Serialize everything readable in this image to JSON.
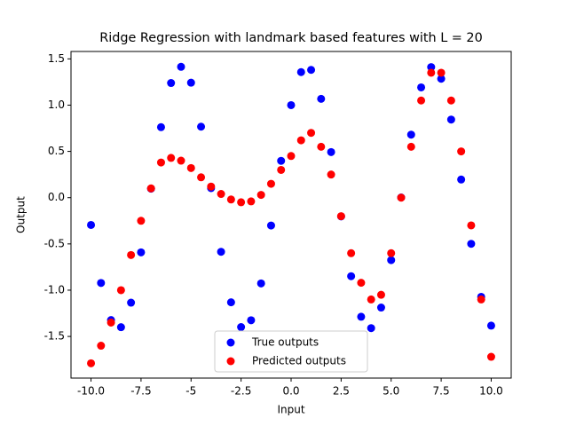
{
  "chart_data": {
    "type": "scatter",
    "title": "Ridge Regression with landmark based features with L = 20",
    "x_label": "Input",
    "y_label": "Output",
    "x": [
      -10,
      -9.5,
      -9,
      -8.5,
      -8,
      -7.5,
      -7,
      -6.5,
      -6,
      -5.5,
      -5,
      -4.5,
      -4,
      -3.5,
      -3,
      -2.5,
      -2,
      -1.5,
      -1,
      -0.5,
      0,
      0.5,
      1,
      1.5,
      2,
      2.5,
      3,
      3.5,
      4,
      4.5,
      5,
      5.5,
      6,
      6.5,
      7,
      7.5,
      8,
      8.5,
      9,
      9.5,
      10
    ],
    "series": [
      {
        "name": "True outputs",
        "color": "#0000ff",
        "values": [
          -0.295,
          -0.922,
          -1.323,
          -1.4,
          -1.135,
          -0.591,
          0.097,
          0.762,
          1.239,
          1.414,
          1.243,
          0.767,
          0.103,
          -0.585,
          -1.131,
          -1.399,
          -1.325,
          -0.927,
          -0.301,
          0.398,
          1,
          1.357,
          1.381,
          1.068,
          0.493,
          -0.203,
          -0.849,
          -1.287,
          -1.41,
          -1.188,
          -0.675,
          0.002,
          0.681,
          1.192,
          1.411,
          1.285,
          0.844,
          0.196,
          -0.499,
          -1.072,
          -1.383
        ]
      },
      {
        "name": "Predicted outputs",
        "color": "#ff0000",
        "values": [
          -1.79,
          -1.6,
          -1.35,
          -1.0,
          -0.62,
          -0.25,
          0.1,
          0.38,
          0.43,
          0.4,
          0.32,
          0.22,
          0.12,
          0.04,
          -0.02,
          -0.05,
          -0.04,
          0.03,
          0.15,
          0.3,
          0.45,
          0.62,
          0.7,
          0.55,
          0.25,
          -0.2,
          -0.6,
          -0.92,
          -1.1,
          -1.05,
          -0.6,
          0.0,
          0.55,
          1.05,
          1.35,
          1.35,
          1.05,
          0.5,
          -0.3,
          -1.1,
          -1.72
        ]
      }
    ],
    "xlim": [
      -11,
      11
    ],
    "xticks": [
      {
        "value": -10,
        "label": "-10.0"
      },
      -7.5,
      -5,
      {
        "value": -5,
        "label": "-5.0"
      },
      -2.5,
      {
        "value": 0,
        "label": "0.0"
      },
      2.5,
      {
        "value": 5,
        "label": "5.0"
      },
      7.5,
      {
        "value": 10,
        "label": "10.0"
      }
    ],
    "ylim": [
      -1.95,
      1.58
    ],
    "yticks": [
      -1.5,
      {
        "value": -1,
        "label": "-1.0"
      },
      -0.5,
      {
        "value": 0,
        "label": "0.0"
      },
      0.5,
      {
        "value": 1,
        "label": "1.0"
      },
      1.5
    ],
    "legend": "lower center",
    "grid": false
  }
}
